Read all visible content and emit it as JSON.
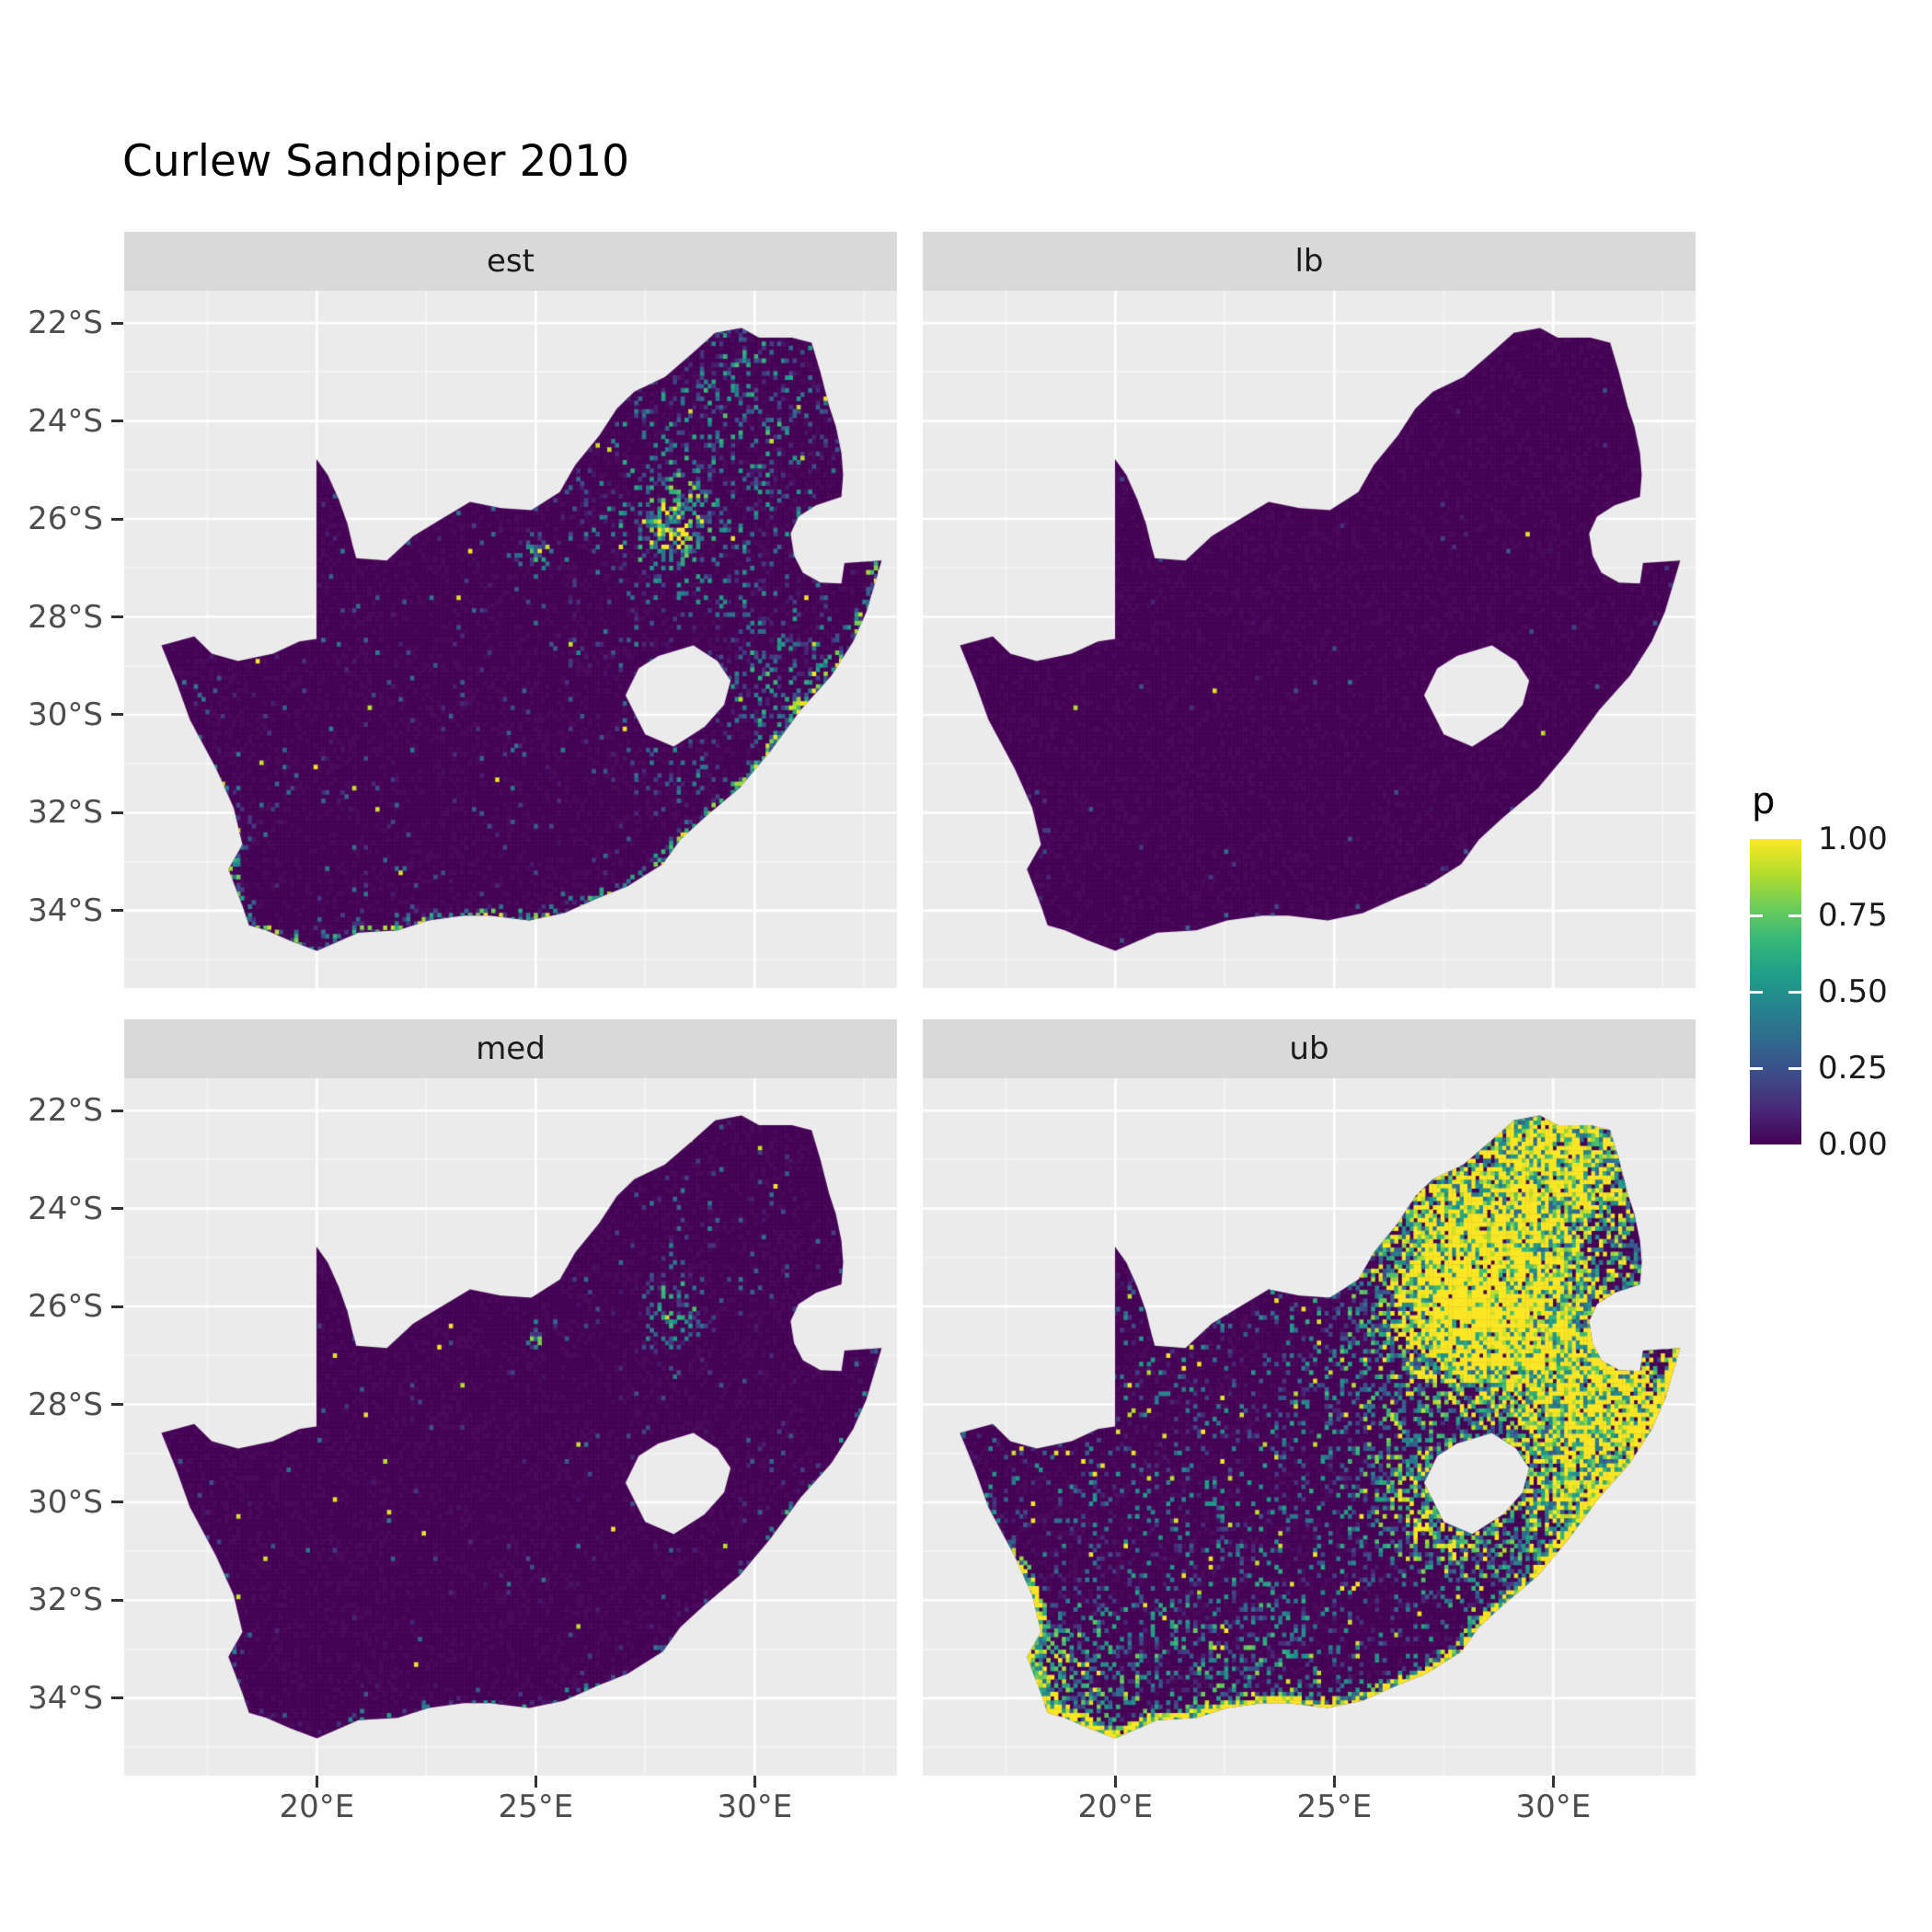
{
  "title": "Curlew Sandpiper 2010",
  "legend": {
    "title": "p",
    "tick_labels": [
      "1.00",
      "0.75",
      "0.50",
      "0.25",
      "0.00"
    ],
    "tick_values": [
      1.0,
      0.75,
      0.5,
      0.25,
      0.0
    ]
  },
  "axes": {
    "x": {
      "tick_labels": [
        "20°E",
        "25°E",
        "30°E"
      ],
      "tick_lons": [
        20,
        25,
        30
      ]
    },
    "y": {
      "tick_labels": [
        "22°S",
        "24°S",
        "26°S",
        "28°S",
        "30°S",
        "32°S",
        "34°S"
      ],
      "tick_lats": [
        -22,
        -24,
        -26,
        -28,
        -30,
        -32,
        -34
      ]
    }
  },
  "colors": {
    "panel_bg": "#EBEBEB",
    "strip_bg": "#D9D9D9",
    "grid": "#FFFFFF",
    "tick": "#333333",
    "axis_text": "#4D4D4D",
    "strip_text": "#1A1A1A",
    "base_fill": "#440154"
  },
  "chart_data": {
    "type": "heatmap",
    "subtype": "faceted-raster-map",
    "title": "Curlew Sandpiper 2010",
    "region": "South Africa",
    "value_name": "p",
    "value_range": [
      0,
      1
    ],
    "cell_deg": 0.0833,
    "legend_position": "right",
    "extent": {
      "lon": [
        15.6,
        33.25
      ],
      "lat": [
        -35.58,
        -21.34
      ]
    },
    "grid": {
      "major_lon": [
        20,
        25,
        30
      ],
      "major_lat": [
        -22,
        -24,
        -26,
        -28,
        -30,
        -32,
        -34
      ],
      "minor_lon": [
        17.5,
        22.5,
        27.5,
        32.5
      ],
      "minor_lat": [
        -23,
        -25,
        -27,
        -29,
        -31,
        -33,
        -35
      ]
    },
    "colormap": {
      "name": "viridis",
      "stops": [
        "#440154",
        "#482878",
        "#3E4A89",
        "#31688E",
        "#26828E",
        "#1F9E89",
        "#35B779",
        "#6DCD59",
        "#B4DE2C",
        "#FDE725"
      ]
    },
    "facets": [
      {
        "id": "est",
        "label": "est",
        "pattern": {
          "seed": 101,
          "base": 0.035,
          "spike": 0.002,
          "coast_amp": 0.5,
          "coast_band": 0.33,
          "hotspots": [
            [
              28.1,
              -26.15,
              0.55,
              0.55
            ],
            [
              28.4,
              -24.6,
              2.0,
              0.16
            ],
            [
              30.2,
              -23.4,
              1.1,
              0.12
            ],
            [
              30.7,
              -29.6,
              0.8,
              0.2
            ],
            [
              25.0,
              -26.65,
              0.18,
              0.5
            ],
            [
              26.2,
              -29.1,
              0.3,
              0.15
            ],
            [
              30.0,
              -28.2,
              1.2,
              0.08
            ],
            [
              28.2,
              -30.8,
              0.7,
              0.15
            ]
          ]
        }
      },
      {
        "id": "lb",
        "label": "lb",
        "pattern": {
          "seed": 202,
          "base": 0.004,
          "spike": 0.0004,
          "coast_amp": 0.06,
          "coast_band": 0.3,
          "hotspots": [
            [
              28.1,
              -26.1,
              0.5,
              0.03
            ]
          ]
        }
      },
      {
        "id": "med",
        "label": "med",
        "pattern": {
          "seed": 303,
          "base": 0.014,
          "spike": 0.0012,
          "coast_amp": 0.2,
          "coast_band": 0.3,
          "hotspots": [
            [
              28.1,
              -26.15,
              0.5,
              0.32
            ],
            [
              28.4,
              -24.8,
              1.8,
              0.05
            ],
            [
              30.6,
              -29.7,
              0.7,
              0.1
            ],
            [
              25.0,
              -26.65,
              0.15,
              0.4
            ]
          ]
        }
      },
      {
        "id": "ub",
        "label": "ub",
        "pattern": {
          "seed": 404,
          "base": 0.12,
          "spike": 0.01,
          "coast_amp": 1.25,
          "coast_band": 0.3,
          "hotspots": [
            [
              28.0,
              -26.2,
              1.0,
              0.9
            ],
            [
              29.3,
              -24.3,
              2.0,
              0.5
            ],
            [
              27.5,
              -24.0,
              1.6,
              0.35
            ],
            [
              30.6,
              -28.6,
              1.3,
              0.45
            ],
            [
              30.9,
              -27.3,
              0.9,
              0.4
            ],
            [
              29.0,
              -26.0,
              1.6,
              0.35
            ],
            [
              18.9,
              -33.8,
              0.9,
              0.45
            ],
            [
              22.5,
              -33.9,
              1.6,
              0.2
            ],
            [
              30.4,
              -30.0,
              1.0,
              0.5
            ],
            [
              25.8,
              -28.6,
              1.2,
              0.15
            ],
            [
              31.8,
              -28.3,
              0.6,
              0.5
            ],
            [
              27.8,
              -30.6,
              0.8,
              0.45
            ],
            [
              26.9,
              -29.8,
              0.7,
              0.3
            ],
            [
              31.0,
              -22.8,
              0.9,
              0.45
            ],
            [
              29.8,
              -22.6,
              0.8,
              0.4
            ]
          ]
        }
      }
    ],
    "south_africa_outline": [
      [
        16.45,
        -28.58
      ],
      [
        17.2,
        -28.4
      ],
      [
        17.6,
        -28.75
      ],
      [
        18.2,
        -28.9
      ],
      [
        19.0,
        -28.75
      ],
      [
        19.6,
        -28.5
      ],
      [
        19.99,
        -28.45
      ],
      [
        19.99,
        -24.78
      ],
      [
        20.25,
        -25.1
      ],
      [
        20.5,
        -25.6
      ],
      [
        20.7,
        -26.1
      ],
      [
        20.82,
        -26.55
      ],
      [
        20.9,
        -26.8
      ],
      [
        21.6,
        -26.85
      ],
      [
        22.2,
        -26.35
      ],
      [
        22.85,
        -26.0
      ],
      [
        23.5,
        -25.65
      ],
      [
        24.2,
        -25.78
      ],
      [
        24.9,
        -25.82
      ],
      [
        25.55,
        -25.45
      ],
      [
        25.9,
        -24.9
      ],
      [
        26.45,
        -24.3
      ],
      [
        26.85,
        -23.75
      ],
      [
        27.25,
        -23.4
      ],
      [
        27.95,
        -23.1
      ],
      [
        28.6,
        -22.6
      ],
      [
        29.1,
        -22.2
      ],
      [
        29.7,
        -22.1
      ],
      [
        30.1,
        -22.3
      ],
      [
        30.85,
        -22.3
      ],
      [
        31.3,
        -22.4
      ],
      [
        31.5,
        -23.0
      ],
      [
        31.7,
        -23.7
      ],
      [
        31.85,
        -24.1
      ],
      [
        31.98,
        -24.65
      ],
      [
        32.02,
        -25.1
      ],
      [
        31.98,
        -25.55
      ],
      [
        31.4,
        -25.72
      ],
      [
        31.0,
        -25.95
      ],
      [
        30.82,
        -26.3
      ],
      [
        30.9,
        -26.75
      ],
      [
        31.1,
        -27.1
      ],
      [
        31.5,
        -27.3
      ],
      [
        31.98,
        -27.32
      ],
      [
        32.05,
        -26.9
      ],
      [
        32.9,
        -26.85
      ],
      [
        32.55,
        -27.9
      ],
      [
        32.25,
        -28.5
      ],
      [
        31.75,
        -29.2
      ],
      [
        31.05,
        -29.9
      ],
      [
        30.35,
        -30.75
      ],
      [
        29.65,
        -31.5
      ],
      [
        28.85,
        -32.1
      ],
      [
        28.3,
        -32.55
      ],
      [
        27.9,
        -33.05
      ],
      [
        27.1,
        -33.5
      ],
      [
        26.4,
        -33.75
      ],
      [
        25.65,
        -34.05
      ],
      [
        24.85,
        -34.2
      ],
      [
        23.95,
        -34.1
      ],
      [
        23.35,
        -34.1
      ],
      [
        22.55,
        -34.2
      ],
      [
        21.85,
        -34.4
      ],
      [
        20.95,
        -34.45
      ],
      [
        20.0,
        -34.82
      ],
      [
        19.35,
        -34.6
      ],
      [
        18.85,
        -34.4
      ],
      [
        18.45,
        -34.3
      ],
      [
        18.3,
        -33.9
      ],
      [
        17.98,
        -33.15
      ],
      [
        18.3,
        -32.65
      ],
      [
        18.1,
        -31.9
      ],
      [
        17.7,
        -31.1
      ],
      [
        17.1,
        -30.1
      ],
      [
        16.8,
        -29.35
      ]
    ],
    "coast_range": [
      45,
      73
    ],
    "lesotho_hole": [
      [
        28.6,
        -28.58
      ],
      [
        29.15,
        -28.9
      ],
      [
        29.45,
        -29.3
      ],
      [
        29.3,
        -29.8
      ],
      [
        28.85,
        -30.25
      ],
      [
        28.15,
        -30.65
      ],
      [
        27.5,
        -30.4
      ],
      [
        27.05,
        -29.6
      ],
      [
        27.35,
        -29.05
      ],
      [
        27.8,
        -28.8
      ]
    ]
  }
}
